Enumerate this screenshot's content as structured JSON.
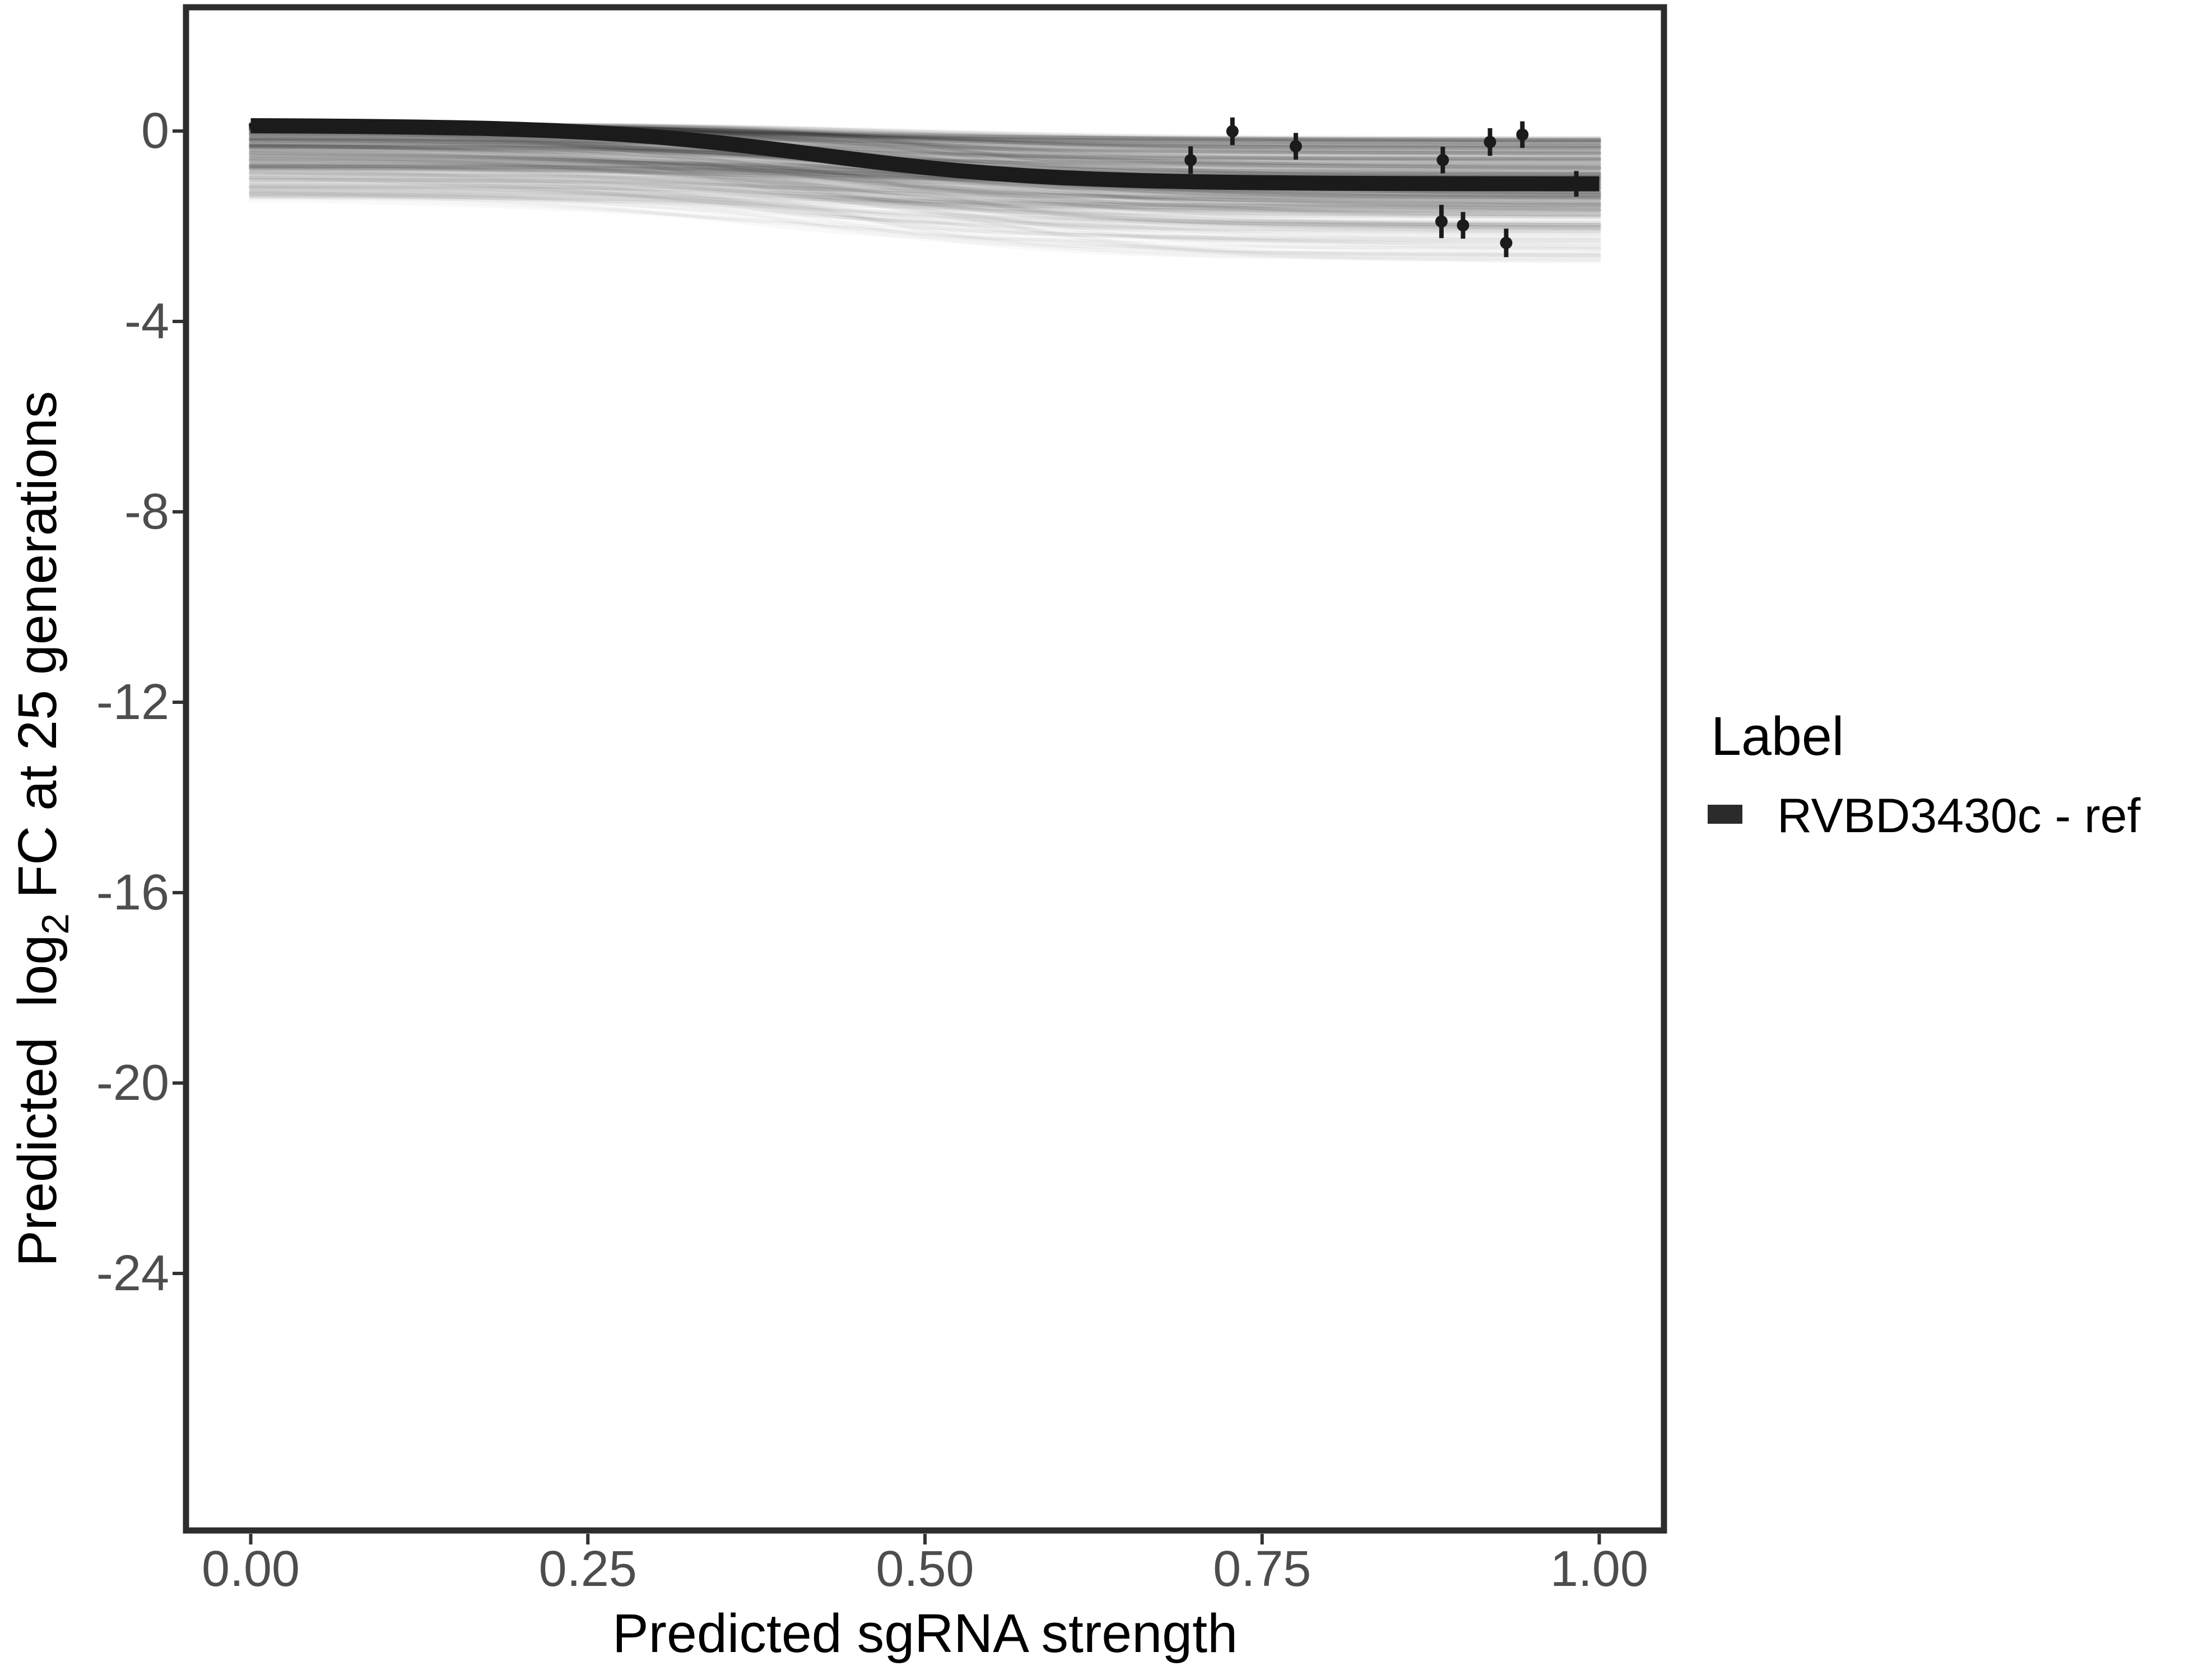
{
  "chart_data": {
    "type": "line",
    "title": "",
    "xlabel": "Predicted sgRNA strength",
    "ylabel_parts": [
      "Predicted  log",
      "2",
      " FC at 25 generations"
    ],
    "xlim": [
      -0.048,
      1.048
    ],
    "ylim": [
      -29.4,
      2.6
    ],
    "grid": "off",
    "legend_position": "right",
    "x_ticks": {
      "values": [
        0,
        0.25,
        0.5,
        0.75,
        1.0
      ],
      "labels": [
        "0.00",
        "0.25",
        "0.50",
        "0.75",
        "1.00"
      ]
    },
    "y_ticks": {
      "values": [
        0,
        -4,
        -8,
        -12,
        -16,
        -20,
        -24
      ],
      "labels": [
        "0",
        "-4",
        "-8",
        "-12",
        "-16",
        "-20",
        "-24"
      ]
    },
    "fit_curve": {
      "label": "RVBD3430c - ref",
      "logistic": {
        "top": 0.12,
        "drop": 1.23,
        "midpoint": 0.42,
        "steepness": 0.085
      },
      "samples_x": [
        0,
        0.1,
        0.2,
        0.3,
        0.4,
        0.45,
        0.5,
        0.6,
        0.7,
        0.8,
        0.9,
        1.0
      ],
      "samples_y": [
        0.11,
        0.09,
        0.03,
        -0.12,
        -0.42,
        -0.6,
        -0.77,
        -0.98,
        -1.07,
        -1.1,
        -1.11,
        -1.11
      ]
    },
    "pointrange": [
      {
        "x": 0.697,
        "y": -0.61,
        "err": 0.29
      },
      {
        "x": 0.728,
        "y": -0.005,
        "err": 0.29
      },
      {
        "x": 0.775,
        "y": -0.32,
        "err": 0.28
      },
      {
        "x": 0.884,
        "y": -0.61,
        "err": 0.28
      },
      {
        "x": 0.919,
        "y": -0.23,
        "err": 0.29
      },
      {
        "x": 0.943,
        "y": -0.075,
        "err": 0.28
      },
      {
        "x": 0.883,
        "y": -1.9,
        "err": 0.35
      },
      {
        "x": 0.899,
        "y": -1.98,
        "err": 0.28
      },
      {
        "x": 0.931,
        "y": -2.35,
        "err": 0.3
      },
      {
        "x": 0.983,
        "y": -1.11,
        "err": 0.27
      }
    ],
    "ensemble": {
      "description": "translucent gray posterior-draw logistic curves behind the fit line",
      "count": 320,
      "seed": 12345,
      "start_value_range": [
        -1.4,
        0.15
      ],
      "end_value_range": [
        -2.75,
        -0.1
      ],
      "midpoint_range": [
        0.34,
        0.54
      ],
      "steepness_range": [
        0.06,
        0.15
      ]
    }
  },
  "legend": {
    "title": "Label",
    "items": [
      {
        "label": "RVBD3430c - ref",
        "key_color": "#2b2b2b"
      }
    ]
  },
  "colors": {
    "background": "#ffffff",
    "fit_line": "#1b1b1b",
    "points": "#1b1b1b",
    "panel_border": "#2d2d2d",
    "tick_marks": "#333333",
    "tick_labels": "#4d4d4d",
    "axis_titles": "#000000",
    "legend_text": "#000000",
    "ensemble_stroke": "#000000"
  }
}
